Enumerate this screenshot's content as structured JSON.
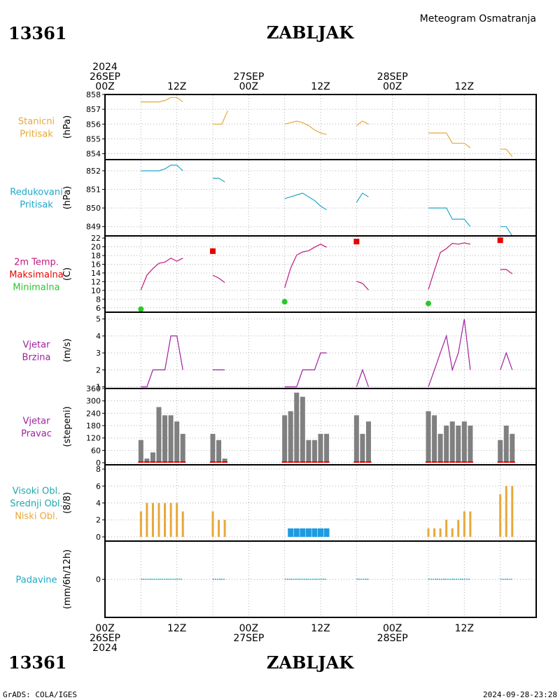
{
  "header": {
    "station_id": "13361",
    "station_name": "ZABLJAK",
    "product": "Meteogram Osmatranja",
    "start_year": "2024"
  },
  "footer": {
    "station_id": "13361",
    "station_name": "ZABLJAK",
    "credit": "GrADS: COLA/IGES",
    "generated": "2024-09-28-23:28"
  },
  "time_axis": {
    "start_hour": 0,
    "end_hour": 72,
    "grid_every_hours": 6,
    "top_labels": [
      {
        "hour": 0,
        "lines": [
          "2024",
          "26SEP",
          "00Z"
        ]
      },
      {
        "hour": 12,
        "lines": [
          "12Z"
        ]
      },
      {
        "hour": 24,
        "lines": [
          "27SEP",
          "00Z"
        ]
      },
      {
        "hour": 36,
        "lines": [
          "12Z"
        ]
      },
      {
        "hour": 48,
        "lines": [
          "28SEP",
          "00Z"
        ]
      },
      {
        "hour": 60,
        "lines": [
          "12Z"
        ]
      }
    ],
    "bottom_labels": [
      {
        "hour": 0,
        "lines": [
          "00Z",
          "26SEP",
          "2024"
        ]
      },
      {
        "hour": 12,
        "lines": [
          "12Z"
        ]
      },
      {
        "hour": 24,
        "lines": [
          "00Z",
          "27SEP"
        ]
      },
      {
        "hour": 36,
        "lines": [
          "12Z"
        ]
      },
      {
        "hour": 48,
        "lines": [
          "00Z",
          "28SEP"
        ]
      },
      {
        "hour": 60,
        "lines": [
          "12Z"
        ]
      }
    ]
  },
  "colors": {
    "orange": "#e8a838",
    "cyan": "#20a8c8",
    "magenta": "#c0187c",
    "red": "#e80000",
    "green": "#28c828",
    "purple": "#a020a0",
    "gray": "#808080",
    "blue": "#1e9be0"
  },
  "chart_data": [
    {
      "id": "station_pressure",
      "type": "line",
      "title_lines": [
        {
          "text": "Stanicni",
          "color": "#e8a838"
        },
        {
          "text": "Pritisak",
          "color": "#e8a838"
        }
      ],
      "ylabel": "(hPa)",
      "ylim": [
        853.6,
        858
      ],
      "yticks": [
        854,
        855,
        856,
        857,
        858
      ],
      "series": [
        {
          "color": "#e8a838",
          "segments": [
            [
              [
                6,
                857.5
              ],
              [
                9,
                857.5
              ],
              [
                10,
                857.6
              ],
              [
                11,
                857.8
              ],
              [
                12,
                857.8
              ],
              [
                13,
                857.5
              ]
            ],
            [
              [
                18,
                856
              ],
              [
                19.5,
                856
              ],
              [
                20.5,
                856.9
              ]
            ],
            [
              [
                30,
                856
              ],
              [
                31,
                856.1
              ],
              [
                32,
                856.2
              ],
              [
                33,
                856.1
              ],
              [
                34,
                855.9
              ],
              [
                35,
                855.6
              ],
              [
                36,
                855.4
              ],
              [
                37,
                855.3
              ]
            ],
            [
              [
                42,
                855.9
              ],
              [
                43,
                856.2
              ],
              [
                44,
                856
              ]
            ],
            [
              [
                54,
                855.4
              ],
              [
                57,
                855.4
              ],
              [
                58,
                854.7
              ],
              [
                60,
                854.7
              ],
              [
                61,
                854.4
              ]
            ],
            [
              [
                66,
                854.3
              ],
              [
                67,
                854.3
              ],
              [
                68,
                853.8
              ]
            ]
          ]
        }
      ]
    },
    {
      "id": "reduced_pressure",
      "type": "line",
      "title_lines": [
        {
          "text": "Redukovani",
          "color": "#20a8c8"
        },
        {
          "text": "Pritisak",
          "color": "#20a8c8"
        }
      ],
      "ylabel": "(hPa)",
      "ylim": [
        848.5,
        852.6
      ],
      "yticks": [
        849,
        850,
        851,
        852
      ],
      "series": [
        {
          "color": "#20a8c8",
          "segments": [
            [
              [
                6,
                852
              ],
              [
                9,
                852
              ],
              [
                10,
                852.1
              ],
              [
                11,
                852.3
              ],
              [
                12,
                852.3
              ],
              [
                13,
                852
              ]
            ],
            [
              [
                18,
                851.6
              ],
              [
                19,
                851.6
              ],
              [
                20,
                851.4
              ]
            ],
            [
              [
                30,
                850.5
              ],
              [
                31,
                850.6
              ],
              [
                32,
                850.7
              ],
              [
                33,
                850.8
              ],
              [
                34,
                850.6
              ],
              [
                35,
                850.4
              ],
              [
                36,
                850.1
              ],
              [
                37,
                849.9
              ]
            ],
            [
              [
                42,
                850.3
              ],
              [
                43,
                850.8
              ],
              [
                44,
                850.6
              ]
            ],
            [
              [
                54,
                850
              ],
              [
                57,
                850
              ],
              [
                58,
                849.4
              ],
              [
                60,
                849.4
              ],
              [
                61,
                849
              ]
            ],
            [
              [
                66,
                849
              ],
              [
                67,
                849
              ],
              [
                68,
                848.5
              ]
            ]
          ]
        }
      ]
    },
    {
      "id": "temperature",
      "type": "line",
      "title_lines": [
        {
          "text": "2m Temp.",
          "color": "#c0187c"
        },
        {
          "text": "Maksimalna",
          "color": "#e80000"
        },
        {
          "text": "Minimalna",
          "color": "#28c828"
        }
      ],
      "ylabel": "(C)",
      "ylim": [
        5,
        22.5
      ],
      "yticks": [
        6,
        8,
        10,
        12,
        14,
        16,
        18,
        20,
        22
      ],
      "series": [
        {
          "color": "#c0187c",
          "segments": [
            [
              [
                6,
                10.1
              ],
              [
                7,
                13.5
              ],
              [
                8,
                15
              ],
              [
                9,
                16.2
              ],
              [
                10,
                16.5
              ],
              [
                11,
                17.4
              ],
              [
                12,
                16.7
              ],
              [
                13,
                17.4
              ]
            ],
            [
              [
                18,
                13.5
              ],
              [
                19,
                12.8
              ],
              [
                20,
                11.8
              ]
            ],
            [
              [
                30,
                10.6
              ],
              [
                31,
                15.1
              ],
              [
                32,
                18.1
              ],
              [
                33,
                18.8
              ],
              [
                34,
                19.1
              ],
              [
                35,
                19.9
              ],
              [
                36,
                20.6
              ],
              [
                37,
                19.9
              ]
            ],
            [
              [
                42,
                12.1
              ],
              [
                43,
                11.6
              ],
              [
                44,
                10.1
              ]
            ],
            [
              [
                54,
                10.2
              ],
              [
                55,
                14.6
              ],
              [
                56,
                18.7
              ],
              [
                57,
                19.6
              ],
              [
                58,
                20.8
              ],
              [
                59,
                20.6
              ],
              [
                60,
                20.9
              ],
              [
                61,
                20.6
              ]
            ],
            [
              [
                66,
                14.8
              ],
              [
                67,
                14.8
              ],
              [
                68,
                13.8
              ]
            ]
          ]
        }
      ],
      "max_points": [
        [
          18,
          19
        ],
        [
          42,
          21.2
        ],
        [
          66,
          21.5
        ]
      ],
      "min_points": [
        [
          6,
          5.7
        ],
        [
          30,
          7.4
        ],
        [
          54,
          7
        ]
      ]
    },
    {
      "id": "wind_speed",
      "type": "line",
      "title_lines": [
        {
          "text": "Vjetar",
          "color": "#a020a0"
        },
        {
          "text": "Brzina",
          "color": "#a020a0"
        }
      ],
      "ylabel": "(m/s)",
      "ylim": [
        0.9,
        5.4
      ],
      "yticks": [
        1,
        2,
        3,
        4,
        5
      ],
      "series": [
        {
          "color": "#a020a0",
          "segments": [
            [
              [
                6,
                1
              ],
              [
                7,
                1
              ],
              [
                8,
                2
              ],
              [
                9,
                2
              ],
              [
                10,
                2
              ],
              [
                11,
                4
              ],
              [
                12,
                4
              ],
              [
                13,
                2
              ]
            ],
            [
              [
                18,
                2
              ],
              [
                19,
                2
              ],
              [
                20,
                2
              ]
            ],
            [
              [
                30,
                1
              ],
              [
                31,
                1
              ],
              [
                32,
                1
              ],
              [
                33,
                2
              ],
              [
                34,
                2
              ],
              [
                35,
                2
              ],
              [
                36,
                3
              ],
              [
                37,
                3
              ]
            ],
            [
              [
                42,
                1
              ],
              [
                43,
                2
              ],
              [
                44,
                1
              ]
            ],
            [
              [
                54,
                1
              ],
              [
                55,
                2
              ],
              [
                56,
                3
              ],
              [
                57,
                4
              ],
              [
                58,
                2
              ],
              [
                59,
                3
              ],
              [
                60,
                5
              ],
              [
                61,
                2
              ]
            ],
            [
              [
                66,
                2
              ],
              [
                67,
                3
              ],
              [
                68,
                2
              ]
            ]
          ]
        }
      ]
    },
    {
      "id": "wind_direction",
      "type": "bar",
      "title_lines": [
        {
          "text": "Vjetar",
          "color": "#a020a0"
        },
        {
          "text": "Pravac",
          "color": "#a020a0"
        }
      ],
      "ylabel": "(stepeni)",
      "ylim": [
        -10,
        360
      ],
      "yticks": [
        0,
        60,
        120,
        180,
        240,
        300,
        360
      ],
      "bar_color": "#808080",
      "baseline_color": "#e80000",
      "hours": [
        6,
        7,
        8,
        9,
        10,
        11,
        12,
        13,
        18,
        19,
        20,
        30,
        31,
        32,
        33,
        34,
        35,
        36,
        37,
        42,
        43,
        44,
        54,
        55,
        56,
        57,
        58,
        59,
        60,
        61,
        66,
        67,
        68
      ],
      "values": [
        110,
        20,
        50,
        270,
        230,
        230,
        200,
        140,
        140,
        110,
        20,
        230,
        250,
        340,
        320,
        110,
        110,
        140,
        140,
        230,
        140,
        200,
        250,
        230,
        140,
        180,
        200,
        180,
        200,
        180,
        110,
        180,
        140
      ]
    },
    {
      "id": "cloud_cover",
      "type": "bar",
      "title_lines": [
        {
          "text": "Visoki Obl.",
          "color": "#20a8a8"
        },
        {
          "text": "Srednji Obl.",
          "color": "#20a8a8"
        },
        {
          "text": "Niski Obl.",
          "color": "#e8a838"
        }
      ],
      "ylabel": "(8/8)",
      "ylim": [
        -0.5,
        8.5
      ],
      "yticks": [
        0,
        2,
        4,
        6,
        8
      ],
      "series": [
        {
          "name": "Niski Obl.",
          "color": "#e8a838",
          "hours": [
            6,
            7,
            8,
            9,
            10,
            11,
            12,
            13,
            18,
            19,
            20,
            54,
            55,
            56,
            57,
            58,
            59,
            60,
            61,
            66,
            67,
            68
          ],
          "values": [
            3,
            4,
            4,
            4,
            4,
            4,
            4,
            3,
            3,
            2,
            2,
            1,
            1,
            1,
            2,
            1,
            2,
            3,
            3,
            5,
            6,
            6
          ]
        },
        {
          "name": "Srednji Obl.",
          "color": "#1e9be0",
          "hours": [
            31,
            32,
            33,
            34,
            35,
            36,
            37
          ],
          "values": [
            1,
            1,
            1,
            1,
            1,
            1,
            1
          ]
        }
      ]
    },
    {
      "id": "precipitation",
      "type": "bar",
      "title_lines": [
        {
          "text": "Padavine",
          "color": "#20a8c8"
        }
      ],
      "ylabel": "(mm/6h/12h)",
      "ylim": [
        -1,
        1
      ],
      "yticks": [
        0
      ],
      "series": [
        {
          "color": "#20a8c8",
          "segments": [
            [
              [
                6,
                0
              ],
              [
                13,
                0
              ]
            ],
            [
              [
                18,
                0
              ],
              [
                20,
                0
              ]
            ],
            [
              [
                30,
                0
              ],
              [
                37,
                0
              ]
            ],
            [
              [
                42,
                0
              ],
              [
                44,
                0
              ]
            ],
            [
              [
                54,
                0
              ],
              [
                61,
                0
              ]
            ],
            [
              [
                66,
                0
              ],
              [
                68,
                0
              ]
            ]
          ]
        }
      ]
    }
  ]
}
